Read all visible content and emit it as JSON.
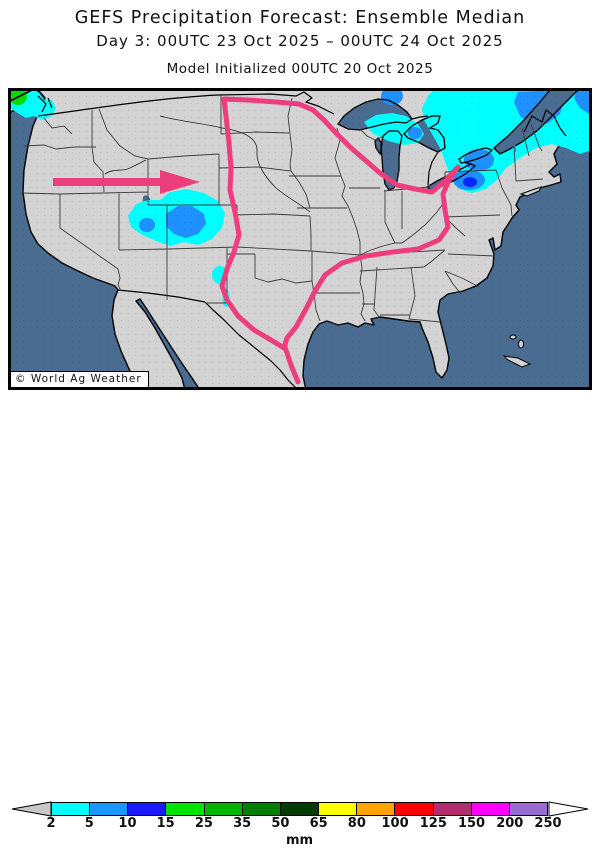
{
  "header": {
    "title": "GEFS Precipitation Forecast: Ensemble Median",
    "subtitle": "Day 3: 00UTC 23 Oct 2025 – 00UTC 24 Oct 2025",
    "initialized": "Model Initialized 00UTC 20 Oct 2025"
  },
  "map": {
    "watermark": "© World Ag Weather",
    "annotations": {
      "arrow": "pink eastward flow arrow over northern Rockies",
      "contour": "pink outline enclosing dry central region from Canadian border to Gulf of Mexico"
    },
    "palette": {
      "ocean": "#4A6C91",
      "land": "#D3D3D3",
      "coast": "#000000",
      "state_border": "#3C3C3C",
      "contour_pink": "#EC3E7D",
      "rain_cyan": "#00FFFF",
      "rain_blue": "#1E90FF",
      "rain_dark_blue": "#0028FF",
      "rain_green": "#00DD00"
    }
  },
  "colorbar": {
    "unit": "mm",
    "values": [
      "2",
      "5",
      "10",
      "15",
      "25",
      "35",
      "50",
      "65",
      "80",
      "100",
      "125",
      "150",
      "200",
      "250"
    ],
    "colors": [
      "#00FFFF",
      "#1E96FF",
      "#1A1AFF",
      "#00E400",
      "#00B400",
      "#008000",
      "#003C00",
      "#FFFF00",
      "#FFA500",
      "#FF0000",
      "#B22D6E",
      "#FF00FF",
      "#9B6BD3"
    ],
    "below_color": "#C8C8C8",
    "above_color": "#FFFFFF"
  }
}
